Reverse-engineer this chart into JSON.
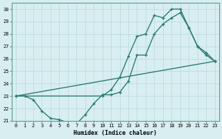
{
  "xlabel": "Humidex (Indice chaleur)",
  "bg_color": "#d8eef0",
  "grid_color": "#b8d8dc",
  "line_color": "#2a7a72",
  "xlim": [
    -0.5,
    23.5
  ],
  "ylim": [
    21,
    30.5
  ],
  "xticks": [
    0,
    1,
    2,
    3,
    4,
    5,
    6,
    7,
    8,
    9,
    10,
    11,
    12,
    13,
    14,
    15,
    16,
    17,
    18,
    19,
    20,
    21,
    22,
    23
  ],
  "yticks": [
    21,
    22,
    23,
    24,
    25,
    26,
    27,
    28,
    29,
    30
  ],
  "line1_x": [
    0,
    23
  ],
  "line1_y": [
    23,
    25.8
  ],
  "line2_x": [
    0,
    1,
    2,
    3,
    4,
    5,
    6,
    7,
    8,
    9,
    10,
    11,
    12,
    13,
    14,
    15,
    16,
    17,
    18,
    19,
    20,
    21,
    22,
    23
  ],
  "line2_y": [
    23.0,
    23.0,
    22.7,
    21.8,
    21.2,
    21.1,
    20.85,
    20.75,
    21.5,
    22.4,
    23.1,
    23.1,
    23.3,
    24.2,
    26.3,
    26.3,
    28.0,
    28.8,
    29.3,
    29.7,
    28.5,
    27.0,
    26.3,
    25.8
  ],
  "line3_x": [
    0,
    10,
    11,
    12,
    13,
    14,
    15,
    16,
    17,
    18,
    19,
    20,
    21,
    22,
    23
  ],
  "line3_y": [
    23.0,
    23.0,
    23.5,
    24.5,
    26.2,
    27.8,
    28.0,
    29.5,
    29.3,
    30.0,
    30.0,
    28.5,
    27.0,
    26.5,
    25.8
  ]
}
